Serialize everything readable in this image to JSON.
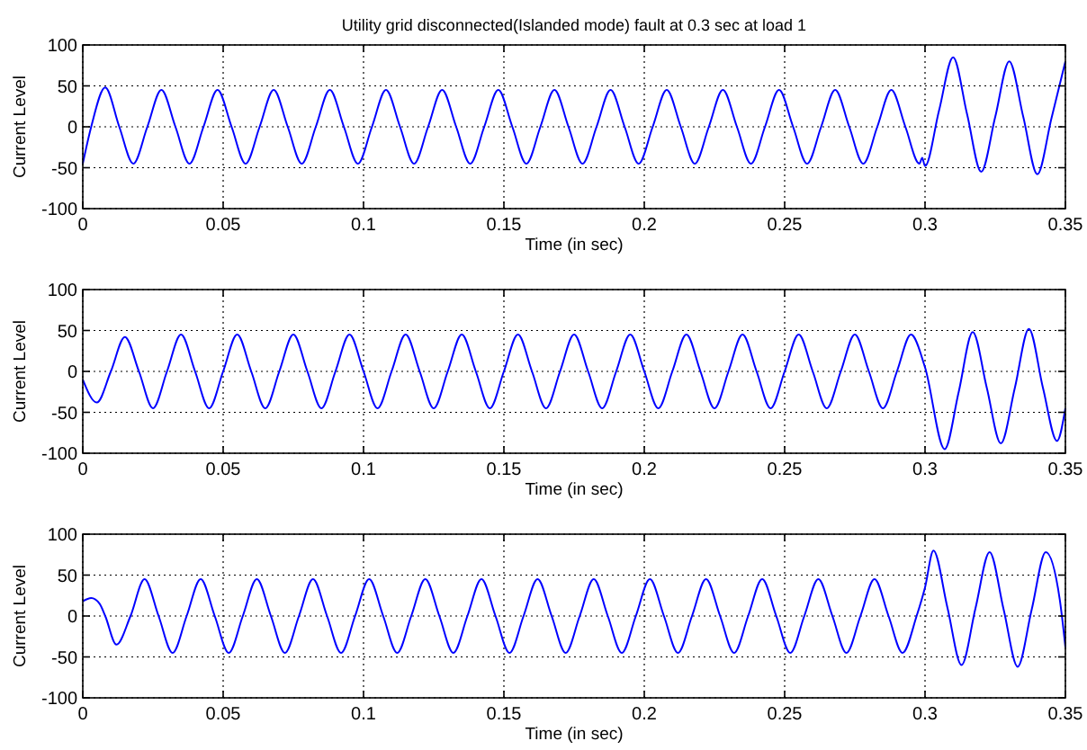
{
  "chart_data": [
    {
      "type": "line",
      "title": "Utility grid disconnected(Islanded mode) fault at 0.3 sec at load 1",
      "xlabel": "Time (in sec)",
      "ylabel": "Current Level",
      "xlim": [
        0,
        0.35
      ],
      "ylim": [
        -100,
        100
      ],
      "xticks": [
        0,
        0.05,
        0.1,
        0.15,
        0.2,
        0.25,
        0.3,
        0.35
      ],
      "yticks": [
        -100,
        -50,
        0,
        50,
        100
      ],
      "grid": true,
      "series": [
        {
          "color": "#0000ff",
          "x": [
            0,
            0.003,
            0.008,
            0.013,
            0.018,
            0.023,
            0.028,
            0.033,
            0.038,
            0.043,
            0.048,
            0.053,
            0.058,
            0.063,
            0.068,
            0.073,
            0.078,
            0.083,
            0.088,
            0.093,
            0.098,
            0.103,
            0.108,
            0.113,
            0.118,
            0.123,
            0.128,
            0.133,
            0.138,
            0.143,
            0.148,
            0.153,
            0.158,
            0.163,
            0.168,
            0.173,
            0.178,
            0.183,
            0.188,
            0.193,
            0.198,
            0.203,
            0.208,
            0.213,
            0.218,
            0.223,
            0.228,
            0.233,
            0.238,
            0.243,
            0.248,
            0.253,
            0.258,
            0.263,
            0.268,
            0.273,
            0.278,
            0.283,
            0.288,
            0.293,
            0.298,
            0.299,
            0.3,
            0.305,
            0.31,
            0.315,
            0.32,
            0.325,
            0.33,
            0.335,
            0.34,
            0.345,
            0.35
          ],
          "values": [
            -45,
            0,
            48,
            0,
            -45,
            0,
            45,
            0,
            -45,
            0,
            45,
            0,
            -45,
            0,
            45,
            0,
            -45,
            0,
            45,
            0,
            -45,
            0,
            45,
            0,
            -45,
            0,
            45,
            0,
            -45,
            0,
            45,
            0,
            -45,
            0,
            45,
            0,
            -45,
            0,
            45,
            0,
            -45,
            0,
            45,
            0,
            -45,
            0,
            45,
            0,
            -45,
            0,
            45,
            0,
            -45,
            0,
            45,
            0,
            -45,
            0,
            45,
            0,
            -45,
            -38,
            -48,
            20,
            85,
            15,
            -55,
            12,
            80,
            12,
            -58,
            10,
            80
          ]
        }
      ]
    },
    {
      "type": "line",
      "xlabel": "Time (in sec)",
      "ylabel": "Current Level",
      "xlim": [
        0,
        0.35
      ],
      "ylim": [
        -100,
        100
      ],
      "xticks": [
        0,
        0.05,
        0.1,
        0.15,
        0.2,
        0.25,
        0.3,
        0.35
      ],
      "yticks": [
        -100,
        -50,
        0,
        50,
        100
      ],
      "grid": true,
      "series": [
        {
          "color": "#0000ff",
          "x": [
            0,
            0.005,
            0.01,
            0.015,
            0.02,
            0.025,
            0.03,
            0.035,
            0.04,
            0.045,
            0.05,
            0.055,
            0.06,
            0.065,
            0.07,
            0.075,
            0.08,
            0.085,
            0.09,
            0.095,
            0.1,
            0.105,
            0.11,
            0.115,
            0.12,
            0.125,
            0.13,
            0.135,
            0.14,
            0.145,
            0.15,
            0.155,
            0.16,
            0.165,
            0.17,
            0.175,
            0.18,
            0.185,
            0.19,
            0.195,
            0.2,
            0.205,
            0.21,
            0.215,
            0.22,
            0.225,
            0.23,
            0.235,
            0.24,
            0.245,
            0.25,
            0.255,
            0.26,
            0.265,
            0.27,
            0.275,
            0.28,
            0.285,
            0.29,
            0.295,
            0.3,
            0.307,
            0.312,
            0.317,
            0.322,
            0.327,
            0.332,
            0.337,
            0.342,
            0.347,
            0.35
          ],
          "values": [
            -10,
            -38,
            0,
            42,
            0,
            -45,
            0,
            45,
            0,
            -45,
            0,
            45,
            0,
            -45,
            0,
            45,
            0,
            -45,
            0,
            45,
            0,
            -45,
            0,
            45,
            0,
            -45,
            0,
            45,
            0,
            -45,
            0,
            45,
            0,
            -45,
            0,
            45,
            0,
            -45,
            0,
            45,
            0,
            -45,
            0,
            45,
            0,
            -45,
            0,
            45,
            0,
            -45,
            0,
            45,
            0,
            -45,
            0,
            45,
            0,
            -45,
            0,
            45,
            5,
            -95,
            -25,
            48,
            -20,
            -88,
            -20,
            52,
            -20,
            -85,
            -45
          ]
        }
      ]
    },
    {
      "type": "line",
      "xlabel": "Time (in sec)",
      "ylabel": "Current Level",
      "xlim": [
        0,
        0.35
      ],
      "ylim": [
        -100,
        100
      ],
      "xticks": [
        0,
        0.05,
        0.1,
        0.15,
        0.2,
        0.25,
        0.3,
        0.35
      ],
      "yticks": [
        -100,
        -50,
        0,
        50,
        100
      ],
      "grid": true,
      "series": [
        {
          "color": "#0000ff",
          "x": [
            0,
            0.003,
            0.006,
            0.008,
            0.012,
            0.017,
            0.022,
            0.027,
            0.032,
            0.037,
            0.042,
            0.047,
            0.052,
            0.057,
            0.062,
            0.067,
            0.072,
            0.077,
            0.082,
            0.087,
            0.092,
            0.097,
            0.102,
            0.107,
            0.112,
            0.117,
            0.122,
            0.127,
            0.132,
            0.137,
            0.142,
            0.147,
            0.152,
            0.157,
            0.162,
            0.167,
            0.172,
            0.177,
            0.182,
            0.187,
            0.192,
            0.197,
            0.202,
            0.207,
            0.212,
            0.217,
            0.222,
            0.227,
            0.232,
            0.237,
            0.242,
            0.247,
            0.252,
            0.257,
            0.262,
            0.267,
            0.272,
            0.277,
            0.282,
            0.287,
            0.292,
            0.297,
            0.3,
            0.303,
            0.308,
            0.313,
            0.318,
            0.323,
            0.328,
            0.333,
            0.338,
            0.343,
            0.348,
            0.35
          ],
          "values": [
            18,
            22,
            15,
            0,
            -35,
            0,
            45,
            0,
            -45,
            0,
            45,
            0,
            -45,
            0,
            45,
            0,
            -45,
            0,
            45,
            0,
            -45,
            0,
            45,
            0,
            -45,
            0,
            45,
            0,
            -45,
            0,
            45,
            0,
            -45,
            0,
            45,
            0,
            -45,
            0,
            45,
            0,
            -45,
            0,
            45,
            0,
            -45,
            0,
            45,
            0,
            -45,
            0,
            45,
            0,
            -45,
            0,
            45,
            0,
            -45,
            0,
            45,
            0,
            -45,
            0,
            35,
            80,
            10,
            -60,
            10,
            78,
            8,
            -62,
            8,
            78,
            20,
            -38
          ]
        }
      ]
    }
  ]
}
